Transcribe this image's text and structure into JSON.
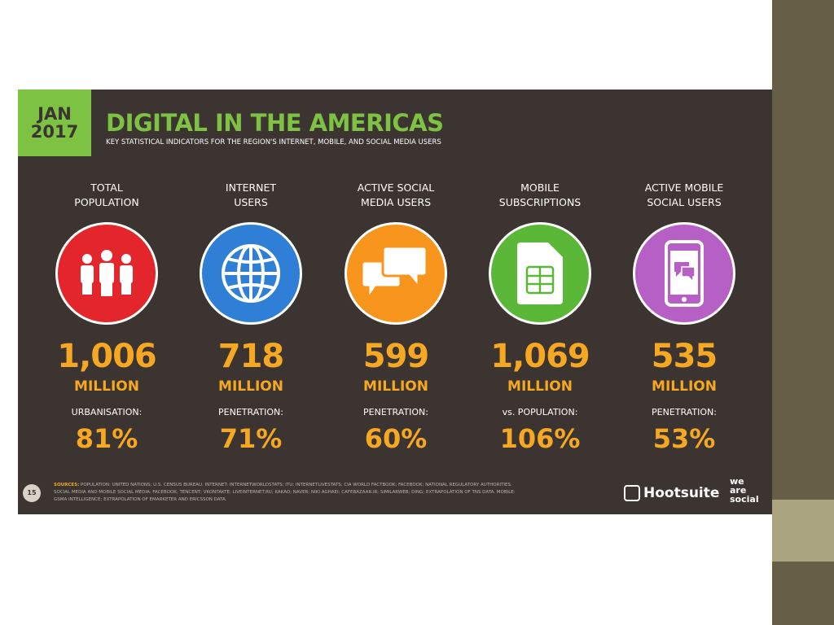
{
  "header": {
    "badge_month": "JAN",
    "badge_year": "2017",
    "title": "DIGITAL IN THE AMERICAS",
    "subtitle": "KEY STATISTICAL INDICATORS FOR THE REGION'S INTERNET, MOBILE, AND SOCIAL MEDIA USERS"
  },
  "stats": [
    {
      "label": [
        "TOTAL",
        "POPULATION"
      ],
      "value": "1,006",
      "unit": "MILLION",
      "sublabel": "URBANISATION:",
      "subvalue": "81%"
    },
    {
      "label": [
        "INTERNET",
        "USERS"
      ],
      "value": "718",
      "unit": "MILLION",
      "sublabel": "PENETRATION:",
      "subvalue": "71%"
    },
    {
      "label": [
        "ACTIVE SOCIAL",
        "MEDIA USERS"
      ],
      "value": "599",
      "unit": "MILLION",
      "sublabel": "PENETRATION:",
      "subvalue": "60%"
    },
    {
      "label": [
        "MOBILE",
        "SUBSCRIPTIONS"
      ],
      "value": "1,069",
      "unit": "MILLION",
      "sublabel": "vs. POPULATION:",
      "subvalue": "106%"
    },
    {
      "label": [
        "ACTIVE MOBILE",
        "SOCIAL USERS"
      ],
      "value": "535",
      "unit": "MILLION",
      "sublabel": "PENETRATION:",
      "subvalue": "53%"
    }
  ],
  "footer": {
    "page": "15",
    "sources_label": "SOURCES:",
    "sources": "POPULATION: UNITED NATIONS; U.S. CENSUS BUREAU. INTERNET: INTERNETWORLDSTATS; ITU; INTERNETLIVESTATS; CIA WORLD FACTBOOK; FACEBOOK; NATIONAL REGULATORY AUTHORITIES. SOCIAL MEDIA AND MOBILE SOCIAL MEDIA: FACEBOOK; TENCENT; VKONTAKTE; LIVEINTERNET.RU; KAKAO; NAVER; NIKI AGHAEI; CAFEBAZAAR.IR; SIMILARWEB; DING; EXTRAPOLATION OF TNS DATA. MOBILE: GSMA INTELLIGENCE; EXTRAPOLATION OF EMARKETER AND ERICSSON DATA.",
    "brand": "Hootsuite",
    "partner": [
      "we",
      "are",
      "social"
    ]
  }
}
